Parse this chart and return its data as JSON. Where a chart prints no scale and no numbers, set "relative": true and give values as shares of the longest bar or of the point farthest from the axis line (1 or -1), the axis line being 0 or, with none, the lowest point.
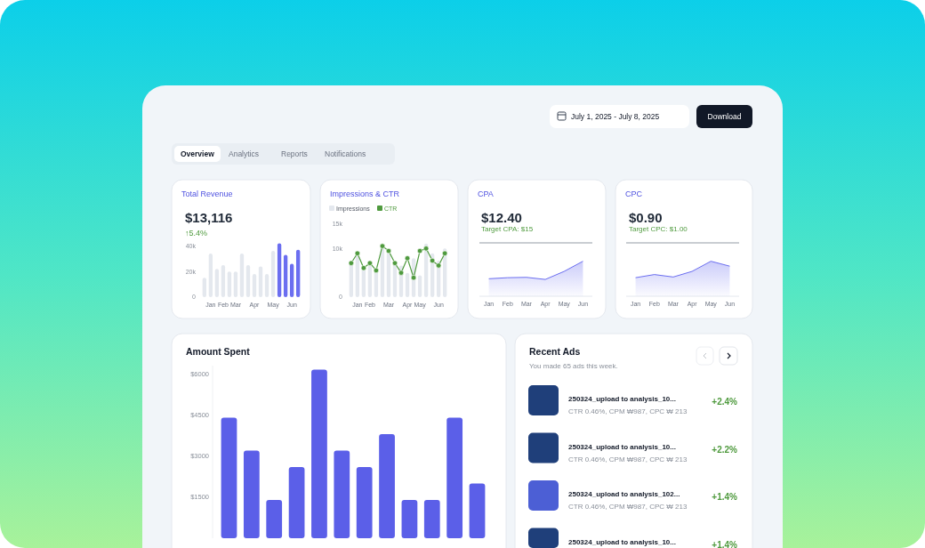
{
  "chart_data": [
    {
      "type": "other",
      "annotations": [
        "July 1, 2025 - July 8, 2025",
        "Download",
        "Overview",
        "Analytics",
        "Reports",
        "Notifications"
      ]
    },
    {
      "type": "bar",
      "title": "Total Revenue",
      "subtitle": "$13,116",
      "annotations": [
        "↑5.4%"
      ],
      "categories": [
        null,
        "Jan",
        null,
        "Feb",
        null,
        "Mar",
        null,
        null,
        "Apr",
        null,
        null,
        "May",
        null,
        null,
        "Jun",
        null
      ],
      "values": [
        15,
        34,
        22,
        25,
        20,
        20,
        34,
        25,
        18,
        24,
        18,
        36,
        42,
        33,
        26,
        37
      ],
      "colors": [
        "#e4e8ee",
        "#e4e8ee",
        "#e4e8ee",
        "#e4e8ee",
        "#e4e8ee",
        "#e4e8ee",
        "#e4e8ee",
        "#e4e8ee",
        "#e4e8ee",
        "#e4e8ee",
        "#e4e8ee",
        "#e4e8ee",
        "#6b6ef0",
        "#6b6ef0",
        "#6b6ef0",
        "#6b6ef0"
      ],
      "ylim": [
        0,
        43
      ],
      "yticks": [
        0,
        {
          "value": 20,
          "label": "20k"
        },
        {
          "value": 40,
          "label": "40k"
        }
      ]
    },
    {
      "type": "bar",
      "title": "Impressions & CTR",
      "categories": [
        null,
        "Jan",
        null,
        "Feb",
        null,
        null,
        "Mar",
        null,
        null,
        "Apr",
        null,
        "May",
        null,
        null,
        "Jun",
        null
      ],
      "series": [
        {
          "name": "Impressions",
          "type": "bar",
          "color": "#e4e8ee",
          "values": [
            7,
            9,
            6,
            6.5,
            5.5,
            10.5,
            10,
            7,
            6.5,
            5,
            8,
            4.5,
            11,
            9,
            7.5,
            10
          ]
        },
        {
          "name": "CTR",
          "type": "line",
          "color": "#4f9a3e",
          "marker": "circle",
          "values": [
            7,
            9,
            6,
            7,
            5.5,
            10.5,
            9.5,
            7,
            5,
            8,
            4,
            9.5,
            10,
            7.5,
            6.5,
            9
          ]
        }
      ],
      "ylim": [
        0,
        15
      ],
      "yticks": [
        0,
        {
          "value": 10,
          "label": "10k"
        },
        {
          "value": 15,
          "label": "15k"
        }
      ],
      "legend": "top left"
    },
    {
      "type": "area",
      "title": "CPA",
      "subtitle": "$12.40",
      "categories": [
        "Jan",
        "Feb",
        "Mar",
        "Apr",
        "May",
        "Jun"
      ],
      "values": [
        0.5,
        0.53,
        0.54,
        0.48,
        0.71,
        1
      ],
      "color": "#6b6ef0",
      "relative": true,
      "annotations": [
        "Target CPA: $15"
      ]
    },
    {
      "type": "area",
      "title": "CPC",
      "subtitle": "$0.90",
      "categories": [
        "Jan",
        "Feb",
        "Mar",
        "Apr",
        "May",
        "Jun"
      ],
      "values": [
        0.53,
        0.62,
        0.55,
        0.71,
        1,
        0.86
      ],
      "color": "#6b6ef0",
      "relative": true,
      "annotations": [
        "Target CPC: $1.00"
      ]
    },
    {
      "type": "bar",
      "title": "Amount Spent",
      "categories": [
        null,
        null,
        null,
        null,
        null,
        null,
        null,
        null,
        null,
        null,
        null,
        null
      ],
      "values": [
        4400,
        3200,
        1400,
        2600,
        6150,
        3200,
        2600,
        3800,
        1400,
        1400,
        4400,
        2000
      ],
      "color": "#5b5fe8",
      "ylim": [
        0,
        6300
      ],
      "yticks": [
        {
          "value": 1500,
          "label": "$1500"
        },
        {
          "value": 3000,
          "label": "$3000"
        },
        {
          "value": 4500,
          "label": "$4500"
        },
        {
          "value": 6000,
          "label": "$6000"
        }
      ],
      "tick_labels": "y"
    },
    {
      "type": "other",
      "title": "Recent Ads",
      "subtitle": "You made 65 ads this week.",
      "annotations": [
        "250324_upload to analysis_10...",
        "+2.4%",
        "CTR 0.46%, CPM ₩987, CPC ₩ 213",
        "250324_upload to analysis_10...",
        "+2.2%",
        "CTR 0.46%, CPM ₩987, CPC ₩ 213",
        "250324_upload to analysis_102...",
        "+1.4%",
        "CTR 0.46%, CPM ₩987, CPC ₩ 213",
        "250324_upload to analysis_10...",
        "+1.4%"
      ]
    }
  ]
}
